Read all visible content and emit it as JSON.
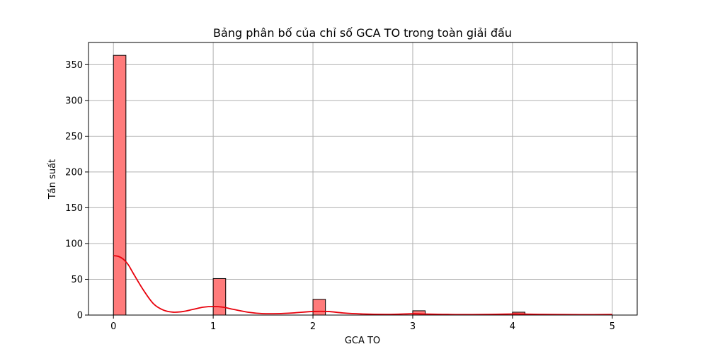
{
  "chart_data": {
    "type": "bar",
    "title": "Bảng phân bố của chỉ số GCA TO trong toàn giải đấu",
    "xlabel": "GCA TO",
    "ylabel": "Tần suất",
    "xlim": [
      -0.25,
      5.25
    ],
    "ylim": [
      0,
      381
    ],
    "x_ticks": [
      "0",
      "1",
      "2",
      "3",
      "4",
      "5"
    ],
    "y_ticks": [
      "0",
      "50",
      "100",
      "150",
      "200",
      "250",
      "300",
      "350"
    ],
    "grid": true,
    "bars": [
      {
        "x0": 0.0,
        "x1": 0.125,
        "count": 363
      },
      {
        "x0": 1.0,
        "x1": 1.125,
        "count": 51
      },
      {
        "x0": 2.0,
        "x1": 2.125,
        "count": 22
      },
      {
        "x0": 3.0,
        "x1": 3.125,
        "count": 6
      },
      {
        "x0": 4.0,
        "x1": 4.125,
        "count": 4
      }
    ],
    "kde": {
      "x": [
        0,
        0.05,
        0.1,
        0.15,
        0.2,
        0.3,
        0.4,
        0.5,
        0.6,
        0.7,
        0.8,
        0.9,
        1.0,
        1.1,
        1.2,
        1.35,
        1.5,
        1.65,
        1.8,
        2.0,
        2.15,
        2.3,
        2.5,
        2.75,
        3.0,
        3.1,
        3.3,
        3.6,
        4.0,
        4.1,
        4.4,
        4.7,
        5.0
      ],
      "y": [
        83,
        82,
        78,
        70,
        58,
        35,
        16,
        7,
        4,
        5,
        8,
        11,
        12,
        11,
        8,
        4,
        2,
        2,
        3,
        5,
        5,
        3,
        1.5,
        1,
        1.8,
        1.5,
        1,
        0.7,
        1.5,
        1.3,
        0.8,
        0.6,
        0.8
      ]
    },
    "colors": {
      "bar_fill": "#ff7b7b",
      "bar_edge": "#000000",
      "kde_line": "#e8000b",
      "grid": "#b0b0b0"
    }
  }
}
